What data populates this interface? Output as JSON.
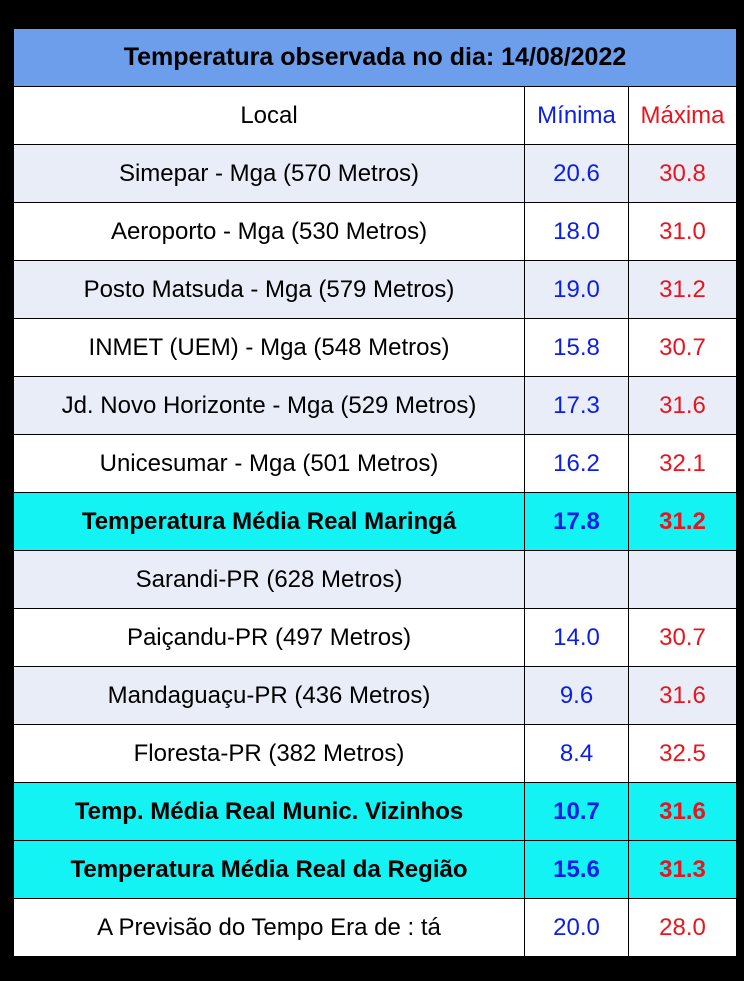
{
  "table": {
    "title": "Temperatura observada no dia: 14/08/2022",
    "header": [
      "Local",
      "Mínima",
      "Máxima"
    ],
    "rows": [
      [
        "Simepar - Mga  (570 Metros)",
        "20.6",
        "30.8"
      ],
      [
        "Aeroporto - Mga (530 Metros)",
        "18.0",
        "31.0"
      ],
      [
        "Posto Matsuda - Mga (579 Metros)",
        "19.0",
        "31.2"
      ],
      [
        "INMET (UEM) - Mga  (548 Metros)",
        "15.8",
        "30.7"
      ],
      [
        "Jd. Novo Horizonte - Mga (529 Metros)",
        "17.3",
        "31.6"
      ],
      [
        "Unicesumar - Mga  (501 Metros)",
        "16.2",
        "32.1"
      ],
      [
        "Temperatura Média Real Maringá",
        "17.8",
        "31.2"
      ],
      [
        "Sarandi-PR  (628 Metros)",
        null,
        null
      ],
      [
        "Paiçandu-PR (497 Metros)",
        "14.0",
        "30.7"
      ],
      [
        "Mandaguaçu-PR (436 Metros)",
        "9.6",
        "31.6"
      ],
      [
        "Floresta-PR (382 Metros)",
        "8.4",
        "32.5"
      ],
      [
        "Temp. Média Real Munic. Vizinhos",
        "10.7",
        "31.6"
      ],
      [
        "Temperatura Média Real da Região",
        "15.6",
        "31.3"
      ],
      [
        "A Previsão do Tempo Era de : tá",
        "20.0",
        "28.0"
      ]
    ]
  }
}
